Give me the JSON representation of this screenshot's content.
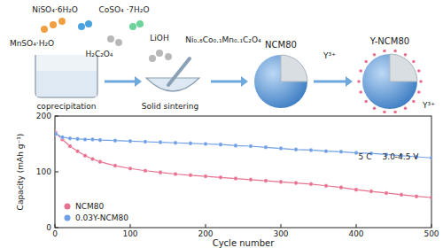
{
  "chart_data": {
    "type": "line",
    "x_label": "Cycle number",
    "y_label": "Capacity (mAh g⁻¹)",
    "annotations": [
      "5 C",
      "3.0-4.5 V"
    ],
    "x": [
      1,
      10,
      20,
      30,
      40,
      50,
      60,
      80,
      100,
      120,
      140,
      160,
      180,
      200,
      220,
      240,
      260,
      280,
      300,
      320,
      340,
      360,
      380,
      400,
      420,
      440,
      460,
      480,
      500
    ],
    "series": [
      {
        "name": "NCM80",
        "color": "#e8718f",
        "marker": "circle",
        "values": [
          170,
          158,
          146,
          137,
          129,
          123,
          118,
          111,
          106,
          102,
          99,
          96,
          94,
          92,
          90,
          88,
          86,
          84,
          82,
          80,
          78,
          75,
          72,
          68,
          65,
          62,
          59,
          56,
          54
        ]
      },
      {
        "name": "0.03Y-NCM80",
        "color": "#6f9fe6",
        "marker": "circle",
        "values": [
          168,
          162,
          160,
          159,
          158,
          158,
          157,
          156,
          155,
          154,
          153,
          152,
          151,
          150,
          149,
          147,
          146,
          144,
          142,
          140,
          139,
          137,
          136,
          134,
          133,
          131,
          129,
          127,
          125
        ]
      }
    ],
    "xlim": [
      0,
      500
    ],
    "ylim": [
      0,
      200
    ],
    "xticks": [
      0,
      100,
      200,
      300,
      400,
      500
    ],
    "yticks": [
      0,
      100,
      200
    ],
    "legend": "lower left"
  },
  "schematic": {
    "reagents": [
      "NiSO₄·6H₂O",
      "CoSO₄ ·7H₂O",
      "MnSO₄·H₂O",
      "H₂C₂O₄",
      "LiOH",
      "Ni₀.₈Co₀.₁Mn₀.₁C₂O₄"
    ],
    "steps": [
      "coprecipitation",
      "Solid sintering"
    ],
    "products": [
      "NCM80",
      "Y-NCM80"
    ],
    "ions": [
      "Y³⁺",
      "Y³⁺"
    ]
  }
}
